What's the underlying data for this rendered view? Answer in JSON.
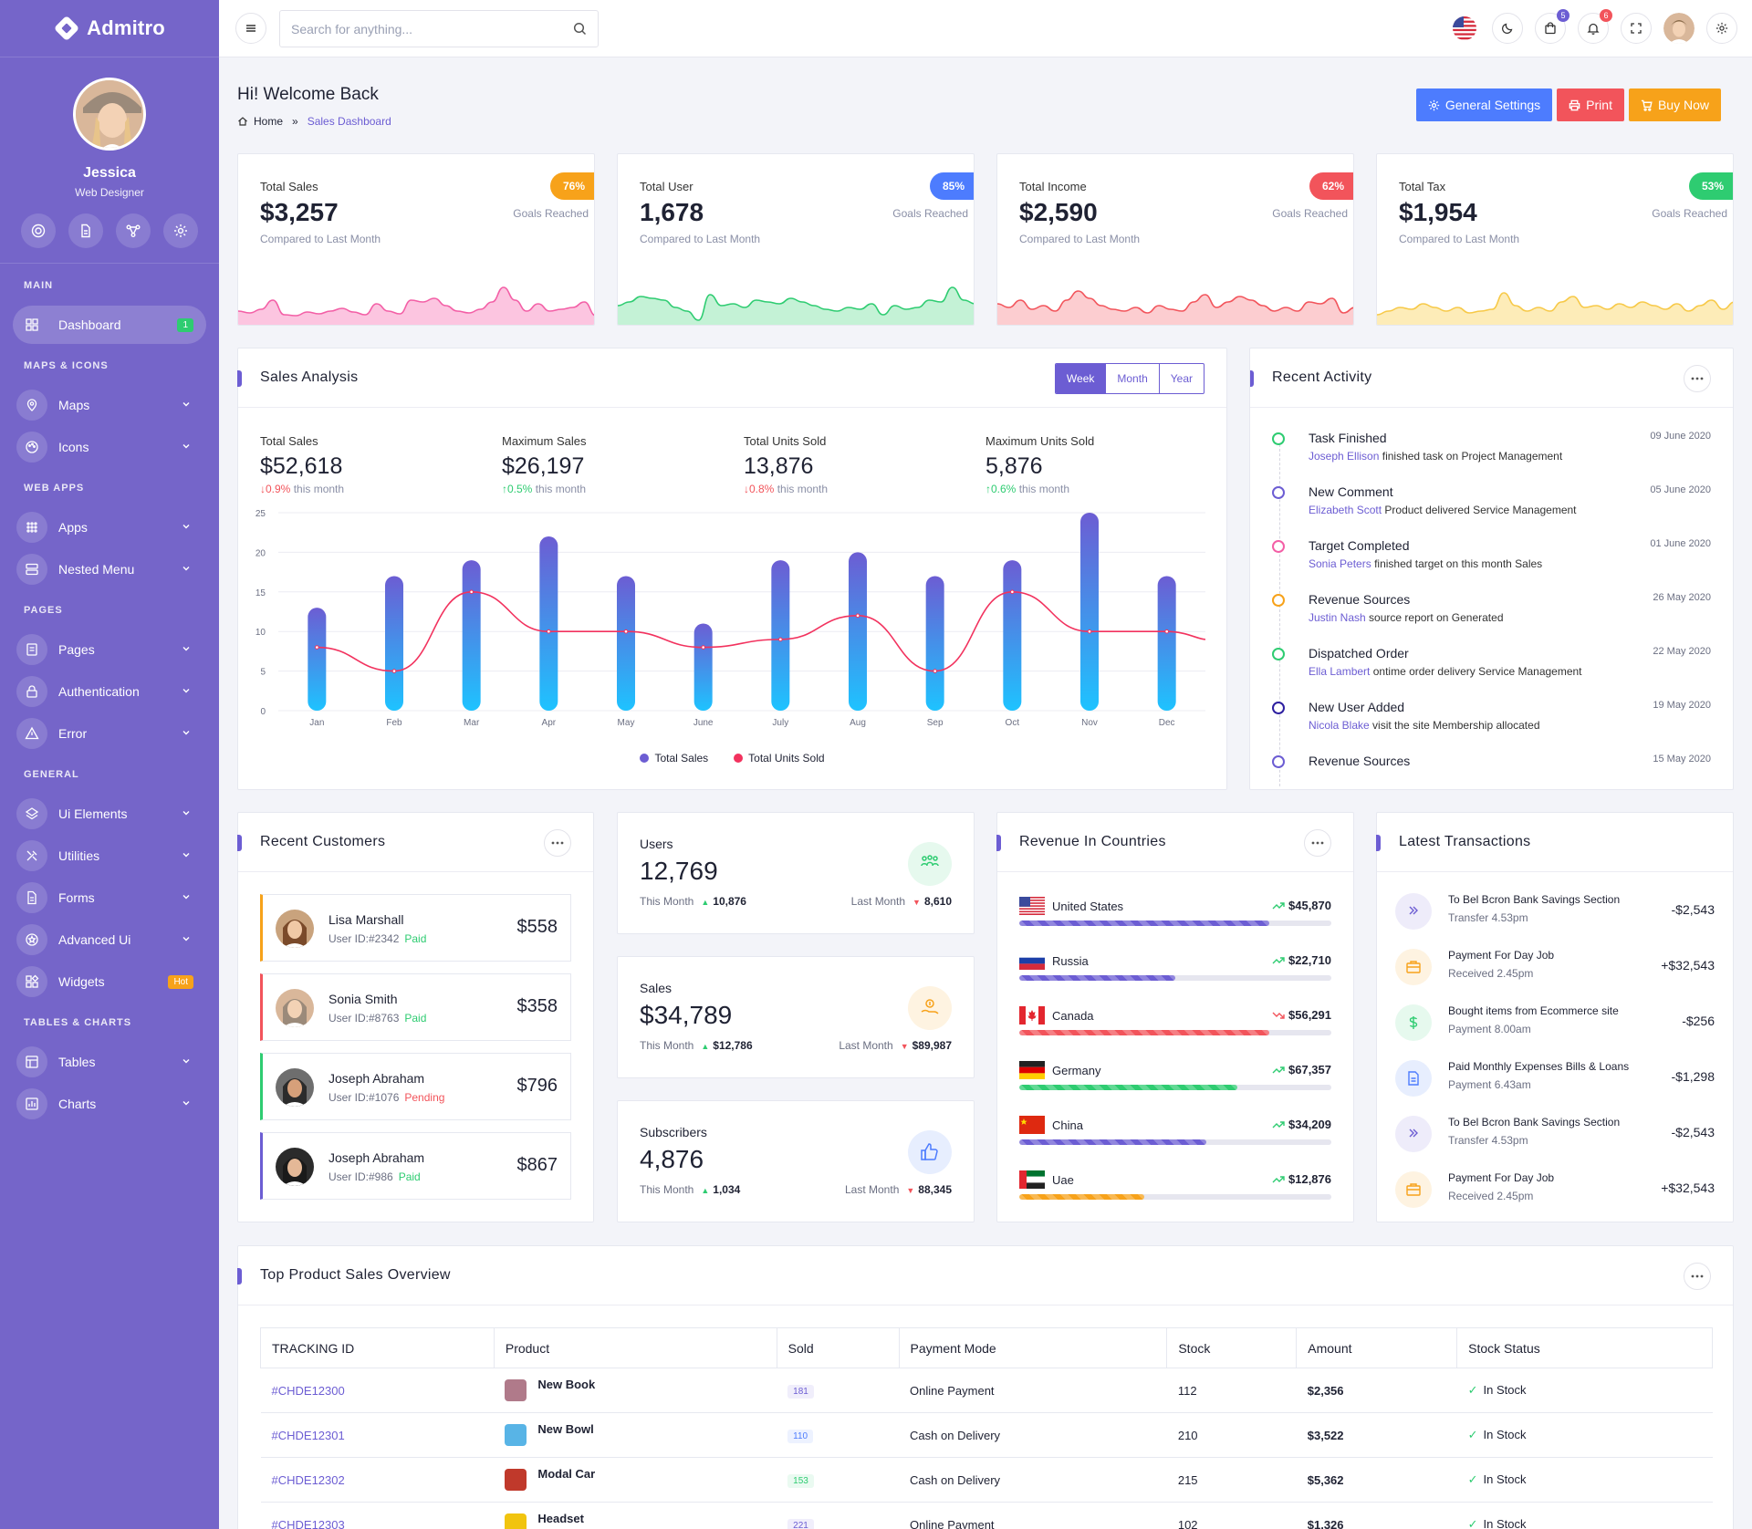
{
  "app": {
    "name": "Admitro"
  },
  "profile": {
    "name": "Jessica",
    "role": "Web Designer"
  },
  "sidebar": {
    "sections": [
      {
        "title": "MAIN"
      },
      {
        "title": "MAPS & ICONS"
      },
      {
        "title": "WEB APPS"
      },
      {
        "title": "PAGES"
      },
      {
        "title": "GENERAL"
      },
      {
        "title": "TABLES & CHARTS"
      }
    ],
    "items": [
      {
        "label": "Dashboard",
        "icon": "grid-icon",
        "badge": "1"
      },
      {
        "label": "Maps",
        "icon": "map-pin-icon"
      },
      {
        "label": "Icons",
        "icon": "palette-icon"
      },
      {
        "label": "Apps",
        "icon": "apps-icon"
      },
      {
        "label": "Nested Menu",
        "icon": "server-icon"
      },
      {
        "label": "Pages",
        "icon": "file-icon"
      },
      {
        "label": "Authentication",
        "icon": "lock-icon"
      },
      {
        "label": "Error",
        "icon": "warning-icon"
      },
      {
        "label": "Ui Elements",
        "icon": "layers-icon"
      },
      {
        "label": "Utilities",
        "icon": "tools-icon"
      },
      {
        "label": "Forms",
        "icon": "form-icon"
      },
      {
        "label": "Advanced Ui",
        "icon": "star-icon"
      },
      {
        "label": "Widgets",
        "icon": "widgets-icon",
        "badge": "Hot"
      },
      {
        "label": "Tables",
        "icon": "table-icon"
      },
      {
        "label": "Charts",
        "icon": "chart-icon"
      }
    ]
  },
  "header": {
    "search_placeholder": "Search for anything...",
    "cart_count": "5",
    "notif_count": "6"
  },
  "page": {
    "title": "Hi! Welcome Back",
    "breadcrumb_home": "Home",
    "breadcrumb_current": "Sales Dashboard",
    "buttons": {
      "settings": "General Settings",
      "print": "Print",
      "buy": "Buy Now"
    }
  },
  "colors": {
    "primary": "#6c5dd3",
    "sidebar": "#7565c9",
    "pink": "#f35fa6",
    "green": "#2ecc71",
    "red": "#f2545b",
    "orange": "#f7a21a",
    "blue": "#4d7cfe"
  },
  "kpis": [
    {
      "label": "Total Sales",
      "value": "$3,257",
      "badge": "76%",
      "goal": "Goals Reached",
      "compare": "Compared to Last Month"
    },
    {
      "label": "Total User",
      "value": "1,678",
      "badge": "85%",
      "goal": "Goals Reached",
      "compare": "Compared to Last Month"
    },
    {
      "label": "Total Income",
      "value": "$2,590",
      "badge": "62%",
      "goal": "Goals Reached",
      "compare": "Compared to Last Month"
    },
    {
      "label": "Total Tax",
      "value": "$1,954",
      "badge": "53%",
      "goal": "Goals Reached",
      "compare": "Compared to Last Month"
    }
  ],
  "sales_analysis": {
    "title": "Sales Analysis",
    "tabs": [
      "Week",
      "Month",
      "Year"
    ],
    "stats": [
      {
        "label": "Total Sales",
        "value": "$52,618",
        "change": "0.9%",
        "suffix": "this month",
        "dir": "down"
      },
      {
        "label": "Maximum Sales",
        "value": "$26,197",
        "change": "0.5%",
        "suffix": "this month",
        "dir": "up"
      },
      {
        "label": "Total Units Sold",
        "value": "13,876",
        "change": "0.8%",
        "suffix": "this month",
        "dir": "down"
      },
      {
        "label": "Maximum Units Sold",
        "value": "5,876",
        "change": "0.6%",
        "suffix": "this month",
        "dir": "up"
      }
    ]
  },
  "chart_data": {
    "type": "bar",
    "categories": [
      "Jan",
      "Feb",
      "Mar",
      "Apr",
      "May",
      "June",
      "July",
      "Aug",
      "Sep",
      "Oct",
      "Nov",
      "Dec"
    ],
    "series": [
      {
        "name": "Total Sales",
        "type": "bar",
        "values": [
          13,
          17,
          19,
          22,
          17,
          11,
          19,
          20,
          17,
          19,
          25,
          17
        ]
      },
      {
        "name": "Total Units Sold",
        "type": "line",
        "values": [
          8,
          5,
          15,
          10,
          10,
          8,
          9,
          12,
          5,
          15,
          10,
          10
        ]
      }
    ],
    "yticks": [
      0,
      5,
      10,
      15,
      20,
      25
    ],
    "ylim": [
      0,
      25
    ],
    "legend": "bottom",
    "grid": true
  },
  "recent_activity": {
    "title": "Recent Activity",
    "items": [
      {
        "title": "Task Finished",
        "name": "Joseph Ellison",
        "text": "finished task on",
        "bold": "Project Management",
        "date": "09 June 2020",
        "color": "#2ecc71"
      },
      {
        "title": "New Comment",
        "name": "Elizabeth Scott",
        "text": "Product delivered",
        "bold": "Service Management",
        "date": "05 June 2020",
        "color": "#6c5dd3"
      },
      {
        "title": "Target Completed",
        "name": "Sonia Peters",
        "text": "finished target on",
        "bold": "this month Sales",
        "date": "01 June 2020",
        "color": "#f35fa6"
      },
      {
        "title": "Revenue Sources",
        "name": "Justin Nash",
        "text": "source report on",
        "bold": "Generated",
        "date": "26 May 2020",
        "color": "#f7a21a"
      },
      {
        "title": "Dispatched Order",
        "name": "Ella Lambert",
        "text": "ontime order delivery",
        "bold": "Service Management",
        "date": "22 May 2020",
        "color": "#2ecc71"
      },
      {
        "title": "New User Added",
        "name": "Nicola Blake",
        "text": "visit the site",
        "bold": "Membership allocated",
        "date": "19 May 2020",
        "color": "#2d1fa0"
      },
      {
        "title": "Revenue Sources",
        "name": "",
        "text": "",
        "bold": "",
        "date": "15 May 2020",
        "color": "#6c5dd3"
      }
    ]
  },
  "recent_customers": {
    "title": "Recent Customers",
    "items": [
      {
        "name": "Lisa Marshall",
        "id": "User ID:#2342",
        "status": "Paid",
        "amount": "$558",
        "accent": "#f7a21a"
      },
      {
        "name": "Sonia Smith",
        "id": "User ID:#8763",
        "status": "Paid",
        "amount": "$358",
        "accent": "#f2545b"
      },
      {
        "name": "Joseph Abraham",
        "id": "User ID:#1076",
        "status": "Pending",
        "amount": "$796",
        "accent": "#2ecc71"
      },
      {
        "name": "Joseph Abraham",
        "id": "User ID:#986",
        "status": "Paid",
        "amount": "$867",
        "accent": "#6c5dd3"
      }
    ]
  },
  "mini_stats": [
    {
      "label": "Users",
      "value": "12,769",
      "this_label": "This Month",
      "this_val": "10,876",
      "last_label": "Last Month",
      "last_val": "8,610"
    },
    {
      "label": "Sales",
      "value": "$34,789",
      "this_label": "This Month",
      "this_val": "$12,786",
      "last_label": "Last Month",
      "last_val": "$89,987"
    },
    {
      "label": "Subscribers",
      "value": "4,876",
      "this_label": "This Month",
      "this_val": "1,034",
      "last_label": "Last Month",
      "last_val": "88,345"
    }
  ],
  "revenue_countries": {
    "title": "Revenue In Countries",
    "items": [
      {
        "name": "United States",
        "value": "$45,870",
        "pct": 80,
        "color": "#6c5dd3",
        "trend": "up"
      },
      {
        "name": "Russia",
        "value": "$22,710",
        "pct": 50,
        "color": "#6c5dd3",
        "trend": "up"
      },
      {
        "name": "Canada",
        "value": "$56,291",
        "pct": 80,
        "color": "#f2545b",
        "trend": "down"
      },
      {
        "name": "Germany",
        "value": "$67,357",
        "pct": 70,
        "color": "#2ecc71",
        "trend": "up"
      },
      {
        "name": "China",
        "value": "$34,209",
        "pct": 60,
        "color": "#6c5dd3",
        "trend": "up"
      },
      {
        "name": "Uae",
        "value": "$12,876",
        "pct": 40,
        "color": "#f7a21a",
        "trend": "up"
      }
    ]
  },
  "transactions": {
    "title": "Latest Transactions",
    "items": [
      {
        "title": "To Bel Bcron Bank",
        "bold": "Savings Section",
        "sub": "Transfer 4.53pm",
        "amount": "-$2,543",
        "icon": "chevrons-right-icon",
        "color": "#6c5dd3"
      },
      {
        "title": "Payment For",
        "bold": "Day Job",
        "sub": "Received 2.45pm",
        "amount": "+$32,543",
        "icon": "briefcase-icon",
        "color": "#f7a21a"
      },
      {
        "title": "Bought items from",
        "bold": "Ecommerce site",
        "sub": "Payment 8.00am",
        "amount": "-$256",
        "icon": "dollar-icon",
        "color": "#2ecc71"
      },
      {
        "title": "Paid Monthly Expenses",
        "bold": "Bills & Loans",
        "sub": "Payment 6.43am",
        "amount": "-$1,298",
        "icon": "document-icon",
        "color": "#4d7cfe"
      },
      {
        "title": "To Bel Bcron Bank",
        "bold": "Savings Section",
        "sub": "Transfer 4.53pm",
        "amount": "-$2,543",
        "icon": "chevrons-right-icon",
        "color": "#6c5dd3"
      },
      {
        "title": "Payment For",
        "bold": "Day Job",
        "sub": "Received 2.45pm",
        "amount": "+$32,543",
        "icon": "briefcase-icon",
        "color": "#f7a21a"
      }
    ]
  },
  "top_products": {
    "title": "Top Product Sales Overview",
    "columns": [
      "TRACKING ID",
      "Product",
      "Sold",
      "Payment Mode",
      "Stock",
      "Amount",
      "Stock Status"
    ],
    "rows": [
      {
        "id": "#CHDE12300",
        "product": "New Book",
        "sold": "181",
        "mode": "Online Payment",
        "stock": "112",
        "amount": "$2,356",
        "status": "In Stock",
        "sold_color": "#6c5dd3"
      },
      {
        "id": "#CHDE12301",
        "product": "New Bowl",
        "sold": "110",
        "mode": "Cash on Delivery",
        "stock": "210",
        "amount": "$3,522",
        "status": "In Stock",
        "sold_color": "#4d7cfe"
      },
      {
        "id": "#CHDE12302",
        "product": "Modal Car",
        "sold": "153",
        "mode": "Cash on Delivery",
        "stock": "215",
        "amount": "$5,362",
        "status": "In Stock",
        "sold_color": "#2ecc71"
      },
      {
        "id": "#CHDE12303",
        "product": "Headset",
        "sold": "221",
        "mode": "Online Payment",
        "stock": "102",
        "amount": "$1,326",
        "status": "In Stock",
        "sold_color": "#6c5dd3"
      }
    ]
  }
}
